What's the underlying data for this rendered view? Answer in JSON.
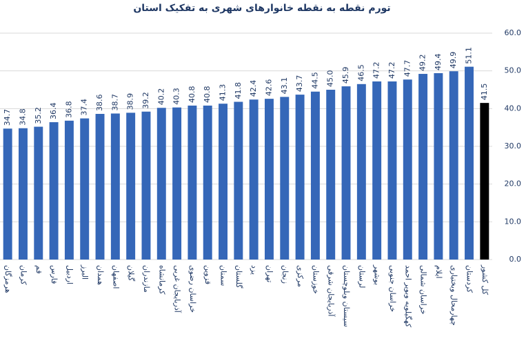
{
  "chart_data": {
    "type": "bar",
    "title": "تورم نقطه به نقطه خانوارهای شهری به تفکیک استان",
    "categories": [
      "هرمزگان",
      "کرمان",
      "قم",
      "فارس",
      "اردبیل",
      "البرز",
      "همدان",
      "اصفهان",
      "گیلان",
      "مازندران",
      "کرمانشاه",
      "آذربایجان غربی",
      "خراسان رضوی",
      "قزوین",
      "سمنان",
      "گلستان",
      "یزد",
      "تهران",
      "زنجان",
      "مرکزی",
      "خوزستان",
      "آذربایجان شرقی",
      "سیستان وبلوچستان",
      "لرستان",
      "بوشهر",
      "خراسان جنوبی",
      "کهگیلویه وبویر احمد",
      "خراسان شمالی",
      "ایلام",
      "چهارمحال وبختیاری",
      "کردستان",
      "کل کشور"
    ],
    "values": [
      34.7,
      34.8,
      35.2,
      36.4,
      36.8,
      37.4,
      38.6,
      38.7,
      38.9,
      39.2,
      40.2,
      40.3,
      40.8,
      40.8,
      41.3,
      41.8,
      42.4,
      42.6,
      43.1,
      43.7,
      44.5,
      45.0,
      45.9,
      46.5,
      47.2,
      47.2,
      47.7,
      49.2,
      49.4,
      49.9,
      51.1,
      41.5
    ],
    "value_labels": [
      "34.7",
      "34.8",
      "35.2",
      "36.4",
      "36.8",
      "37.4",
      "38.6",
      "38.7",
      "38.9",
      "39.2",
      "40.2",
      "40.3",
      "40.8",
      "40.8",
      "41.3",
      "41.8",
      "42.4",
      "42.6",
      "43.1",
      "43.7",
      "44.5",
      "45.0",
      "45.9",
      "46.5",
      "47.2",
      "47.2",
      "47.7",
      "49.2",
      "49.4",
      "49.9",
      "51.1",
      "41.5"
    ],
    "colors": [
      "#3567b8",
      "#3567b8",
      "#3567b8",
      "#3567b8",
      "#3567b8",
      "#3567b8",
      "#3567b8",
      "#3567b8",
      "#3567b8",
      "#3567b8",
      "#3567b8",
      "#3567b8",
      "#3567b8",
      "#3567b8",
      "#3567b8",
      "#3567b8",
      "#3567b8",
      "#3567b8",
      "#3567b8",
      "#3567b8",
      "#3567b8",
      "#3567b8",
      "#3567b8",
      "#3567b8",
      "#3567b8",
      "#3567b8",
      "#3567b8",
      "#3567b8",
      "#3567b8",
      "#3567b8",
      "#3567b8",
      "#000000"
    ],
    "ylim": [
      0,
      60
    ],
    "yticks": [
      {
        "value": 0,
        "label": "0.0"
      },
      {
        "value": 10,
        "label": "10.0"
      },
      {
        "value": 20,
        "label": "20.0"
      },
      {
        "value": 30,
        "label": "30.0"
      },
      {
        "value": 40,
        "label": "40.0"
      },
      {
        "value": 50,
        "label": "50.0"
      },
      {
        "value": 60,
        "label": "60.0"
      }
    ],
    "grid": true
  }
}
